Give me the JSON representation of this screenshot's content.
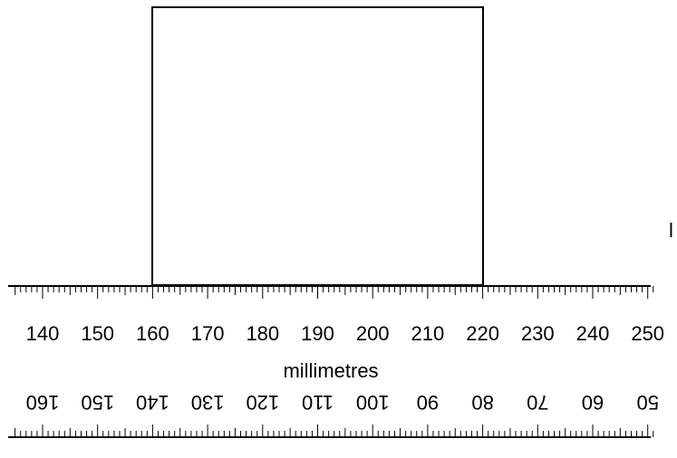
{
  "unit_label": "millimetres",
  "side_mark": "l",
  "colors": {
    "ink": "#000000",
    "paper": "#ffffff"
  },
  "upper_scale": {
    "start_mm": 135,
    "end_mm": 251,
    "labels": [
      "140",
      "150",
      "160",
      "170",
      "180",
      "190",
      "200",
      "210",
      "220",
      "230",
      "240",
      "250"
    ]
  },
  "lower_scale": {
    "orientation": "rotated 180 degrees",
    "labels": [
      "160",
      "150",
      "140",
      "130",
      "120",
      "110",
      "100",
      "90",
      "80",
      "70",
      "60",
      "50"
    ]
  },
  "block": {
    "left_edge_mm": 160,
    "right_edge_mm": 220,
    "rests_on": "upper scale"
  }
}
